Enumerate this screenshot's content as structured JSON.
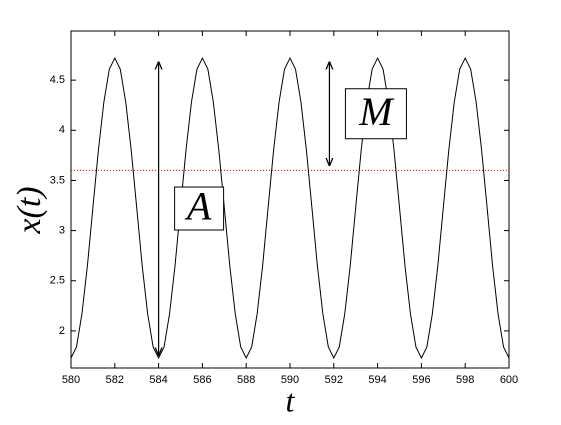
{
  "chart_data": {
    "type": "line",
    "xlabel": "t",
    "ylabel": "x(t)",
    "x": [
      580,
      580.25,
      580.5,
      580.75,
      581,
      581.25,
      581.5,
      581.75,
      582,
      582.25,
      582.5,
      582.75,
      583,
      583.25,
      583.5,
      583.75,
      584,
      584.25,
      584.5,
      584.75,
      585,
      585.25,
      585.5,
      585.75,
      586,
      586.25,
      586.5,
      586.75,
      587,
      587.25,
      587.5,
      587.75,
      588,
      588.25,
      588.5,
      588.75,
      589,
      589.25,
      589.5,
      589.75,
      590,
      590.25,
      590.5,
      590.75,
      591,
      591.25,
      591.5,
      591.75,
      592,
      592.25,
      592.5,
      592.75,
      593,
      593.25,
      593.5,
      593.75,
      594,
      594.25,
      594.5,
      594.75,
      595,
      595.25,
      595.5,
      595.75,
      596,
      596.25,
      596.5,
      596.75,
      597,
      597.25,
      597.5,
      597.75,
      598,
      598.25,
      598.5,
      598.75,
      599,
      599.25,
      599.5,
      599.75,
      600
    ],
    "values": [
      1.73,
      1.84,
      2.17,
      2.65,
      3.23,
      3.8,
      4.28,
      4.61,
      4.72,
      4.61,
      4.28,
      3.8,
      3.23,
      2.65,
      2.17,
      1.84,
      1.73,
      1.84,
      2.17,
      2.65,
      3.23,
      3.8,
      4.28,
      4.61,
      4.72,
      4.61,
      4.28,
      3.8,
      3.23,
      2.65,
      2.17,
      1.84,
      1.73,
      1.84,
      2.17,
      2.65,
      3.23,
      3.8,
      4.28,
      4.61,
      4.72,
      4.61,
      4.28,
      3.8,
      3.23,
      2.65,
      2.17,
      1.84,
      1.73,
      1.84,
      2.17,
      2.65,
      3.23,
      3.8,
      4.28,
      4.61,
      4.72,
      4.61,
      4.28,
      3.8,
      3.23,
      2.65,
      2.17,
      1.84,
      1.73,
      1.84,
      2.17,
      2.65,
      3.23,
      3.8,
      4.28,
      4.61,
      4.72,
      4.61,
      4.28,
      3.8,
      3.23,
      2.65,
      2.17,
      1.84,
      1.73
    ],
    "color": "#000000",
    "hline": {
      "y": 3.6,
      "color": "#ff0000"
    },
    "annotations": [
      {
        "text": "A",
        "x": 584,
        "y_from": 1.76,
        "y_to": 4.68
      },
      {
        "text": "M",
        "x": 591.8,
        "y_from": 3.65,
        "y_to": 4.68
      }
    ],
    "xlim": [
      580,
      600
    ],
    "ylim": [
      1.63,
      4.99
    ],
    "xticks": [
      580,
      582,
      584,
      586,
      588,
      590,
      592,
      594,
      596,
      598,
      600
    ],
    "yticks": [
      2,
      2.5,
      3,
      3.5,
      4,
      4.5
    ]
  }
}
